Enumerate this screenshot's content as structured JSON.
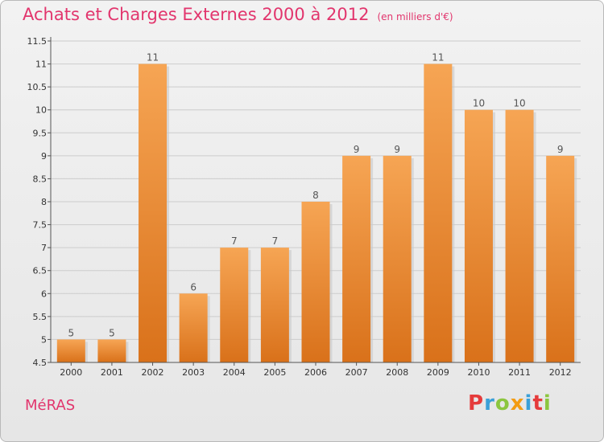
{
  "header": {
    "title": "Achats et Charges Externes 2000 à 2012",
    "subtitle": "(en milliers d'€)"
  },
  "footer": {
    "place": "MéRAS",
    "brand_letters": [
      "P",
      "r",
      "o",
      "x",
      "i",
      "t",
      "i"
    ],
    "brand_colors": [
      "#e53b3b",
      "#3aa0d8",
      "#8cc63f",
      "#f39c12",
      "#3aa0d8",
      "#e53b3b",
      "#8cc63f"
    ]
  },
  "chart_data": {
    "type": "bar",
    "title": "Achats et Charges Externes 2000 à 2012",
    "subtitle": "(en milliers d'€)",
    "categories": [
      "2000",
      "2001",
      "2002",
      "2003",
      "2004",
      "2005",
      "2006",
      "2007",
      "2008",
      "2009",
      "2010",
      "2011",
      "2012"
    ],
    "values": [
      5,
      5,
      11,
      6,
      7,
      7,
      8,
      9,
      9,
      11,
      10,
      10,
      9
    ],
    "data_labels": [
      "5",
      "5",
      "11",
      "6",
      "7",
      "7",
      "8",
      "9",
      "9",
      "11",
      "10",
      "10",
      "9"
    ],
    "ylim": [
      4.5,
      11.5
    ],
    "yticks": [
      "4.5",
      "5",
      "5.5",
      "6",
      "6.5",
      "7",
      "7.5",
      "8",
      "8.5",
      "9",
      "9.5",
      "10",
      "10.5",
      "11",
      "11.5"
    ],
    "grid": true,
    "colors": {
      "bar_top": "#f6a554",
      "bar_bottom": "#d9711a",
      "grid": "#cccccc",
      "axis": "#555555"
    }
  }
}
